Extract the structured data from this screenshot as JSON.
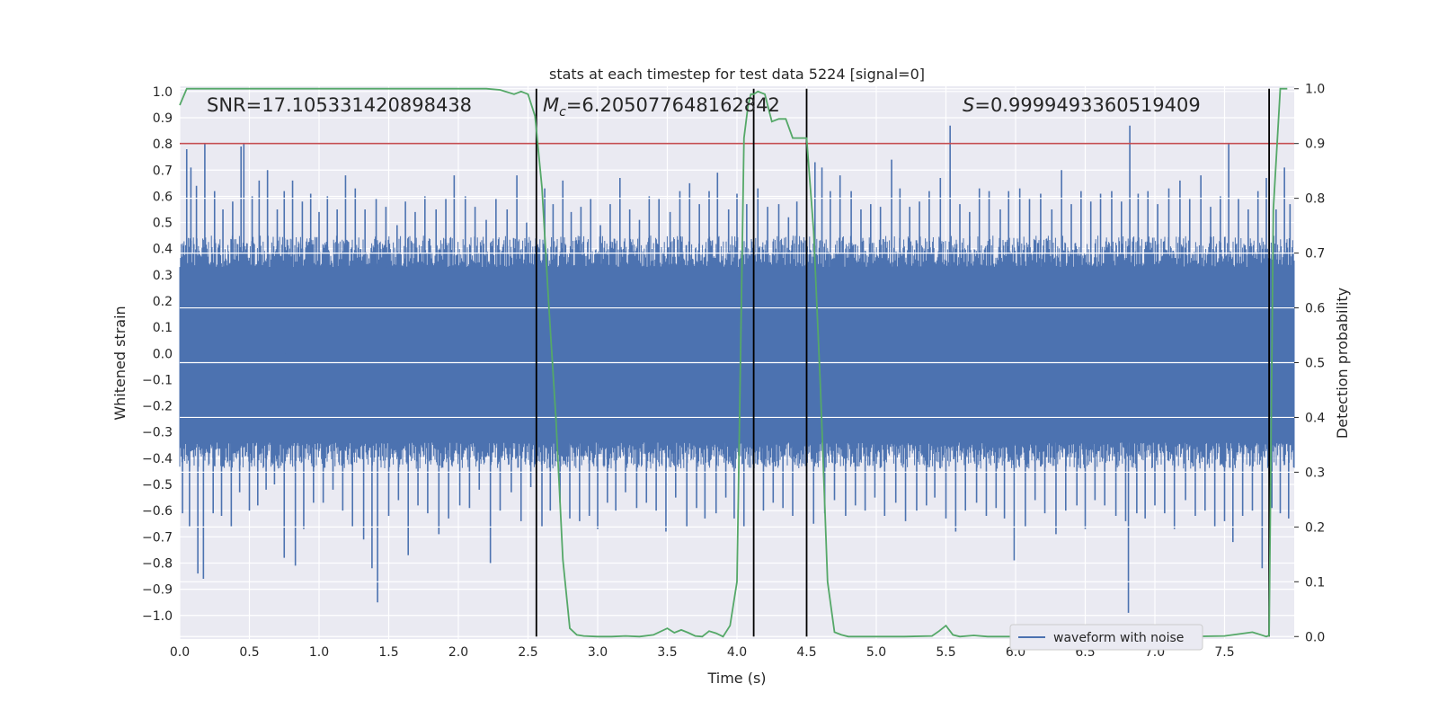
{
  "chart_data": {
    "type": "line",
    "title": "stats at each timestep for test data 5224 [signal=0]",
    "xlabel": "Time (s)",
    "ylabel": "Whitened strain",
    "y2label": "Detection probability",
    "xlim": [
      0.0,
      8.0
    ],
    "ylim": [
      -1.09,
      1.02
    ],
    "y2lim": [
      -0.0045,
      1.0045
    ],
    "x_ticks": [
      0.0,
      0.5,
      1.0,
      1.5,
      2.0,
      2.5,
      3.0,
      3.5,
      4.0,
      4.5,
      5.0,
      5.5,
      6.0,
      6.5,
      7.0,
      7.5
    ],
    "x_tick_labels": [
      "0.0",
      "0.5",
      "1.0",
      "1.5",
      "2.0",
      "2.5",
      "3.0",
      "3.5",
      "4.0",
      "4.5",
      "5.0",
      "5.5",
      "6.0",
      "6.5",
      "7.0",
      "7.5"
    ],
    "y_ticks": [
      1.0,
      0.9,
      0.8,
      0.7,
      0.6,
      0.5,
      0.4,
      0.3,
      0.2,
      0.1,
      0.0,
      -0.1,
      -0.2,
      -0.3,
      -0.4,
      -0.5,
      -0.6,
      -0.7,
      -0.8,
      -0.9,
      -1.0
    ],
    "y_tick_labels": [
      "1.0",
      "0.9",
      "0.8",
      "0.7",
      "0.6",
      "0.5",
      "0.4",
      "0.3",
      "0.2",
      "0.1",
      "0.0",
      "−0.1",
      "−0.2",
      "−0.3",
      "−0.4",
      "−0.5",
      "−0.6",
      "−0.7",
      "−0.8",
      "−0.9",
      "−1.0"
    ],
    "y2_ticks": [
      0.0,
      0.1,
      0.2,
      0.3,
      0.4,
      0.5,
      0.6,
      0.7,
      0.8,
      0.9,
      1.0
    ],
    "y2_tick_labels": [
      "0.0",
      "0.1",
      "0.2",
      "0.3",
      "0.4",
      "0.5",
      "0.6",
      "0.7",
      "0.8",
      "0.9",
      "1.0"
    ],
    "annotations": {
      "snr": "SNR=17.105331420898438",
      "mc_symbol": "M",
      "mc_subscript": "c",
      "mc_value": "=6.205077648162842",
      "s_symbol": "S",
      "s_value": "=0.9999493360519409"
    },
    "threshold": {
      "y2": 0.9,
      "color": "#c44e52"
    },
    "vertical_markers_x": [
      2.56,
      4.12,
      4.5,
      7.82
    ],
    "marker_range_y2": [
      0.0,
      1.0
    ],
    "waveform": {
      "name": "waveform with noise",
      "color": "#4c72b0",
      "envelope_upper": 0.33,
      "envelope_lower": -0.34,
      "spikes": [
        [
          0.05,
          0.78
        ],
        [
          0.08,
          0.71
        ],
        [
          0.12,
          0.64
        ],
        [
          0.18,
          0.8
        ],
        [
          0.25,
          0.62
        ],
        [
          0.31,
          0.55
        ],
        [
          0.38,
          0.58
        ],
        [
          0.44,
          0.79
        ],
        [
          0.46,
          0.8
        ],
        [
          0.52,
          0.6
        ],
        [
          0.57,
          0.66
        ],
        [
          0.63,
          0.7
        ],
        [
          0.7,
          0.55
        ],
        [
          0.75,
          0.62
        ],
        [
          0.81,
          0.66
        ],
        [
          0.88,
          0.58
        ],
        [
          0.94,
          0.61
        ],
        [
          1.0,
          0.54
        ],
        [
          1.06,
          0.6
        ],
        [
          1.13,
          0.55
        ],
        [
          1.19,
          0.68
        ],
        [
          1.26,
          0.63
        ],
        [
          1.33,
          0.55
        ],
        [
          1.41,
          0.59
        ],
        [
          1.48,
          0.56
        ],
        [
          1.56,
          0.49
        ],
        [
          1.62,
          0.58
        ],
        [
          1.69,
          0.54
        ],
        [
          1.76,
          0.6
        ],
        [
          1.84,
          0.55
        ],
        [
          1.91,
          0.59
        ],
        [
          1.97,
          0.68
        ],
        [
          2.05,
          0.6
        ],
        [
          2.12,
          0.56
        ],
        [
          2.2,
          0.51
        ],
        [
          2.27,
          0.59
        ],
        [
          2.35,
          0.55
        ],
        [
          2.42,
          0.68
        ],
        [
          2.49,
          0.5
        ],
        [
          2.62,
          0.63
        ],
        [
          2.68,
          0.57
        ],
        [
          2.75,
          0.66
        ],
        [
          2.81,
          0.54
        ],
        [
          2.88,
          0.56
        ],
        [
          2.95,
          0.59
        ],
        [
          3.02,
          0.49
        ],
        [
          3.09,
          0.57
        ],
        [
          3.16,
          0.67
        ],
        [
          3.23,
          0.55
        ],
        [
          3.3,
          0.51
        ],
        [
          3.37,
          0.6
        ],
        [
          3.44,
          0.59
        ],
        [
          3.52,
          0.54
        ],
        [
          3.59,
          0.62
        ],
        [
          3.66,
          0.65
        ],
        [
          3.73,
          0.57
        ],
        [
          3.8,
          0.62
        ],
        [
          3.86,
          0.69
        ],
        [
          3.94,
          0.55
        ],
        [
          4.0,
          0.61
        ],
        [
          4.07,
          0.57
        ],
        [
          4.15,
          0.63
        ],
        [
          4.22,
          0.56
        ],
        [
          4.3,
          0.57
        ],
        [
          4.37,
          0.52
        ],
        [
          4.43,
          0.58
        ],
        [
          4.56,
          0.73
        ],
        [
          4.61,
          0.71
        ],
        [
          4.67,
          0.62
        ],
        [
          4.74,
          0.68
        ],
        [
          4.82,
          0.62
        ],
        [
          4.89,
          0.55
        ],
        [
          4.96,
          0.57
        ],
        [
          5.03,
          0.56
        ],
        [
          5.11,
          0.74
        ],
        [
          5.17,
          0.63
        ],
        [
          5.24,
          0.56
        ],
        [
          5.31,
          0.58
        ],
        [
          5.38,
          0.62
        ],
        [
          5.46,
          0.67
        ],
        [
          5.53,
          0.87
        ],
        [
          5.6,
          0.57
        ],
        [
          5.67,
          0.54
        ],
        [
          5.74,
          0.63
        ],
        [
          5.81,
          0.62
        ],
        [
          5.89,
          0.55
        ],
        [
          5.95,
          0.62
        ],
        [
          6.03,
          0.63
        ],
        [
          6.1,
          0.59
        ],
        [
          6.18,
          0.61
        ],
        [
          6.26,
          0.55
        ],
        [
          6.33,
          0.7
        ],
        [
          6.4,
          0.57
        ],
        [
          6.47,
          0.62
        ],
        [
          6.54,
          0.58
        ],
        [
          6.61,
          0.61
        ],
        [
          6.69,
          0.62
        ],
        [
          6.76,
          0.58
        ],
        [
          6.82,
          0.87
        ],
        [
          6.88,
          0.61
        ],
        [
          6.95,
          0.62
        ],
        [
          7.02,
          0.57
        ],
        [
          7.1,
          0.63
        ],
        [
          7.18,
          0.66
        ],
        [
          7.25,
          0.59
        ],
        [
          7.33,
          0.68
        ],
        [
          7.4,
          0.56
        ],
        [
          7.47,
          0.6
        ],
        [
          7.53,
          0.8
        ],
        [
          7.6,
          0.59
        ],
        [
          7.67,
          0.55
        ],
        [
          7.74,
          0.62
        ],
        [
          7.8,
          0.67
        ],
        [
          7.87,
          0.55
        ],
        [
          7.93,
          0.71
        ],
        [
          7.97,
          0.57
        ],
        [
          0.02,
          -0.61
        ],
        [
          0.07,
          -0.66
        ],
        [
          0.13,
          -0.84
        ],
        [
          0.17,
          -0.86
        ],
        [
          0.24,
          -0.61
        ],
        [
          0.3,
          -0.62
        ],
        [
          0.37,
          -0.66
        ],
        [
          0.43,
          -0.53
        ],
        [
          0.5,
          -0.6
        ],
        [
          0.56,
          -0.58
        ],
        [
          0.62,
          -0.52
        ],
        [
          0.68,
          -0.5
        ],
        [
          0.75,
          -0.78
        ],
        [
          0.83,
          -0.81
        ],
        [
          0.89,
          -0.67
        ],
        [
          0.96,
          -0.57
        ],
        [
          1.03,
          -0.57
        ],
        [
          1.1,
          -0.52
        ],
        [
          1.17,
          -0.6
        ],
        [
          1.24,
          -0.66
        ],
        [
          1.32,
          -0.71
        ],
        [
          1.38,
          -0.82
        ],
        [
          1.42,
          -0.95
        ],
        [
          1.5,
          -0.62
        ],
        [
          1.57,
          -0.56
        ],
        [
          1.64,
          -0.77
        ],
        [
          1.71,
          -0.58
        ],
        [
          1.78,
          -0.61
        ],
        [
          1.86,
          -0.69
        ],
        [
          1.93,
          -0.63
        ],
        [
          2.01,
          -0.58
        ],
        [
          2.08,
          -0.59
        ],
        [
          2.15,
          -0.52
        ],
        [
          2.23,
          -0.8
        ],
        [
          2.3,
          -0.6
        ],
        [
          2.38,
          -0.53
        ],
        [
          2.45,
          -0.64
        ],
        [
          2.52,
          -0.51
        ],
        [
          2.6,
          -0.66
        ],
        [
          2.66,
          -0.6
        ],
        [
          2.73,
          -0.57
        ],
        [
          2.8,
          -0.63
        ],
        [
          2.87,
          -0.64
        ],
        [
          2.94,
          -0.62
        ],
        [
          3.0,
          -0.67
        ],
        [
          3.07,
          -0.57
        ],
        [
          3.13,
          -0.6
        ],
        [
          3.2,
          -0.53
        ],
        [
          3.28,
          -0.59
        ],
        [
          3.35,
          -0.57
        ],
        [
          3.42,
          -0.6
        ],
        [
          3.49,
          -0.68
        ],
        [
          3.56,
          -0.55
        ],
        [
          3.64,
          -0.66
        ],
        [
          3.71,
          -0.59
        ],
        [
          3.77,
          -0.63
        ],
        [
          3.85,
          -0.61
        ],
        [
          3.92,
          -0.55
        ],
        [
          3.98,
          -0.63
        ],
        [
          4.05,
          -0.66
        ],
        [
          4.19,
          -0.6
        ],
        [
          4.26,
          -0.57
        ],
        [
          4.33,
          -0.59
        ],
        [
          4.4,
          -0.62
        ],
        [
          4.55,
          -0.65
        ],
        [
          4.63,
          -0.61
        ],
        [
          4.7,
          -0.56
        ],
        [
          4.78,
          -0.62
        ],
        [
          4.85,
          -0.58
        ],
        [
          4.92,
          -0.6
        ],
        [
          4.99,
          -0.55
        ],
        [
          5.06,
          -0.62
        ],
        [
          5.14,
          -0.57
        ],
        [
          5.21,
          -0.64
        ],
        [
          5.29,
          -0.6
        ],
        [
          5.36,
          -0.58
        ],
        [
          5.42,
          -0.55
        ],
        [
          5.5,
          -0.63
        ],
        [
          5.57,
          -0.68
        ],
        [
          5.64,
          -0.6
        ],
        [
          5.72,
          -0.57
        ],
        [
          5.79,
          -0.62
        ],
        [
          5.86,
          -0.59
        ],
        [
          5.92,
          -0.63
        ],
        [
          5.99,
          -0.79
        ],
        [
          6.07,
          -0.66
        ],
        [
          6.14,
          -0.56
        ],
        [
          6.21,
          -0.61
        ],
        [
          6.29,
          -0.69
        ],
        [
          6.36,
          -0.6
        ],
        [
          6.44,
          -0.58
        ],
        [
          6.5,
          -0.67
        ],
        [
          6.57,
          -0.56
        ],
        [
          6.64,
          -0.58
        ],
        [
          6.72,
          -0.62
        ],
        [
          6.79,
          -0.64
        ],
        [
          6.81,
          -0.99
        ],
        [
          6.87,
          -0.61
        ],
        [
          6.93,
          -0.63
        ],
        [
          7.0,
          -0.58
        ],
        [
          7.07,
          -0.61
        ],
        [
          7.14,
          -0.67
        ],
        [
          7.22,
          -0.56
        ],
        [
          7.29,
          -0.62
        ],
        [
          7.36,
          -0.6
        ],
        [
          7.43,
          -0.66
        ],
        [
          7.5,
          -0.64
        ],
        [
          7.56,
          -0.72
        ],
        [
          7.63,
          -0.62
        ],
        [
          7.7,
          -0.6
        ],
        [
          7.77,
          -0.82
        ],
        [
          7.84,
          -0.59
        ],
        [
          7.9,
          -0.61
        ],
        [
          7.96,
          -0.63
        ]
      ]
    },
    "probability": {
      "color": "#55a868",
      "x": [
        0.0,
        0.05,
        0.1,
        0.2,
        0.4,
        0.6,
        0.8,
        1.0,
        1.2,
        1.5,
        1.8,
        2.0,
        2.2,
        2.3,
        2.4,
        2.45,
        2.5,
        2.55,
        2.6,
        2.65,
        2.7,
        2.75,
        2.8,
        2.85,
        2.9,
        3.0,
        3.1,
        3.2,
        3.3,
        3.4,
        3.5,
        3.55,
        3.6,
        3.65,
        3.7,
        3.75,
        3.8,
        3.85,
        3.9,
        3.95,
        4.0,
        4.05,
        4.08,
        4.1,
        4.12,
        4.15,
        4.2,
        4.25,
        4.3,
        4.35,
        4.4,
        4.45,
        4.5,
        4.55,
        4.6,
        4.65,
        4.7,
        4.75,
        4.8,
        4.9,
        5.0,
        5.2,
        5.4,
        5.45,
        5.5,
        5.55,
        5.6,
        5.65,
        5.7,
        5.8,
        5.9,
        6.0,
        6.3,
        6.6,
        6.9,
        7.0,
        7.2,
        7.5,
        7.7,
        7.75,
        7.8,
        7.82,
        7.85,
        7.9,
        7.95
      ],
      "y": [
        0.97,
        1.0,
        1.0,
        1.0,
        1.0,
        1.0,
        1.0,
        1.0,
        1.0,
        1.0,
        1.0,
        1.0,
        1.0,
        0.998,
        0.99,
        0.995,
        0.99,
        0.95,
        0.82,
        0.6,
        0.4,
        0.14,
        0.015,
        0.003,
        0.001,
        0.0,
        0.0,
        0.001,
        0.0,
        0.003,
        0.015,
        0.007,
        0.012,
        0.007,
        0.001,
        0.0,
        0.01,
        0.006,
        0.0,
        0.02,
        0.1,
        0.91,
        0.97,
        0.99,
        0.99,
        0.995,
        0.99,
        0.94,
        0.945,
        0.945,
        0.91,
        0.91,
        0.91,
        0.74,
        0.45,
        0.1,
        0.008,
        0.003,
        0.0,
        0.0,
        0.0,
        0.0,
        0.001,
        0.01,
        0.02,
        0.003,
        0.0,
        0.001,
        0.002,
        0.0,
        0.0,
        0.0,
        0.0,
        0.0,
        0.0,
        0.001,
        0.0,
        0.001,
        0.008,
        0.004,
        0.0,
        0.002,
        0.78,
        1.0,
        1.0
      ]
    }
  }
}
